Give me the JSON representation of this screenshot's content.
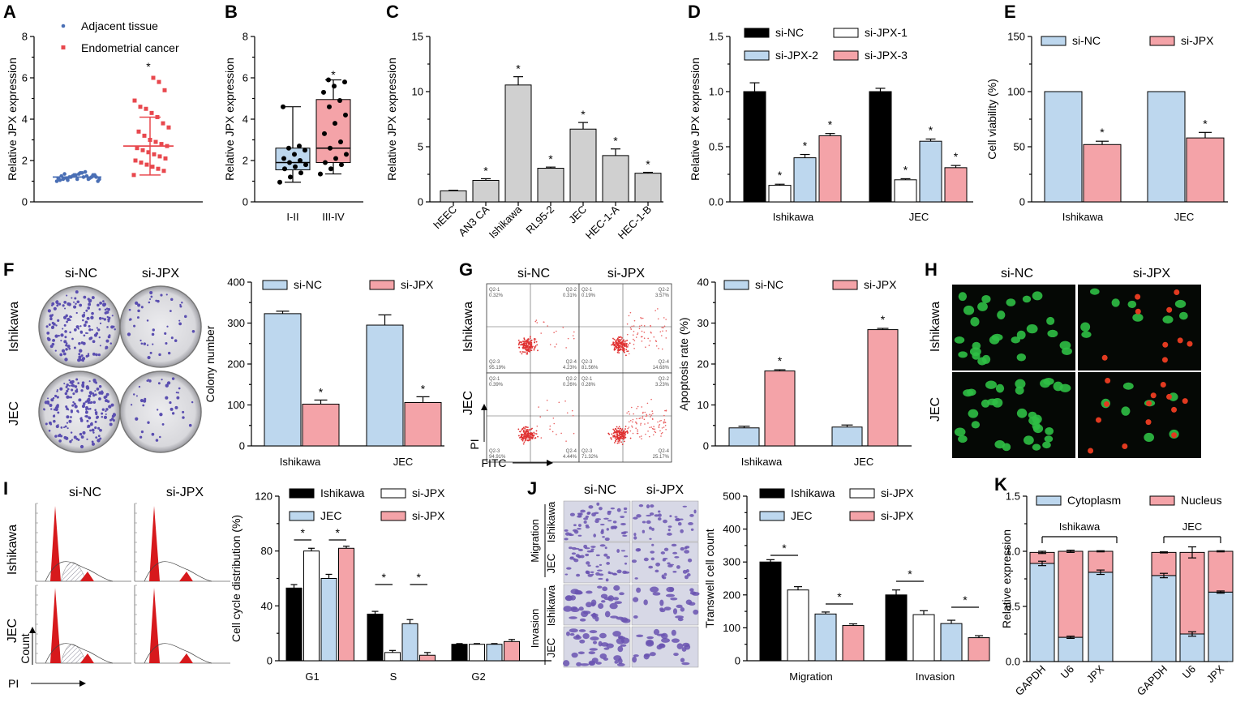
{
  "colors": {
    "blue": "#bdd7ee",
    "red": "#f4a3a8",
    "gray": "#d0d0d0",
    "black": "#000000",
    "white": "#ffffff",
    "dotBlue": "#4a6fb5",
    "dotRed": "#e8484e",
    "cellGreen": "#2fbf45",
    "cellRed": "#e23a20",
    "histRed": "#d7191c",
    "plateLight": "#e3e3e6",
    "plateDot": "#5a4eb0",
    "transLight": "#d7d8e6",
    "transCell": "#6a54b0"
  },
  "panels": {
    "A": {
      "letter": "A",
      "ylabel": "Relative JPX expression",
      "yticks": [
        "0",
        "2",
        "4",
        "6",
        "8"
      ],
      "legend": [
        "Adjacent tissue",
        "Endometrial cancer"
      ],
      "star": "*"
    },
    "B": {
      "letter": "B",
      "ylabel": "Relative JPX expression",
      "yticks": [
        "0",
        "2",
        "4",
        "6",
        "8"
      ],
      "xlabels": [
        "I-II",
        "III-IV"
      ],
      "star": "*"
    },
    "C": {
      "letter": "C",
      "ylabel": "Relative JPX expression",
      "yticks": [
        "0",
        "5",
        "10",
        "15"
      ],
      "xlabels": [
        "hEEC",
        "AN3 CA",
        "Ishikawa",
        "RL95-2",
        "JEC",
        "HEC-1-A",
        "HEC-1-B"
      ],
      "star": "*"
    },
    "D": {
      "letter": "D",
      "ylabel": "Relative JPX expression",
      "yticks": [
        "0.0",
        "0.5",
        "1.0",
        "1.5"
      ],
      "legend": [
        "si-NC",
        "si-JPX-1",
        "si-JPX-2",
        "si-JPX-3"
      ],
      "xlabels": [
        "Ishikawa",
        "JEC"
      ],
      "star": "*"
    },
    "E": {
      "letter": "E",
      "ylabel": "Cell viability (%)",
      "yticks": [
        "0",
        "50",
        "100",
        "150"
      ],
      "legend": [
        "si-NC",
        "si-JPX"
      ],
      "xlabels": [
        "Ishikawa",
        "JEC"
      ],
      "star": "*"
    },
    "F": {
      "letter": "F",
      "cols": [
        "si-NC",
        "si-JPX"
      ],
      "rows": [
        "Ishikawa",
        "JEC"
      ],
      "ylabel": "Colony number",
      "yticks": [
        "0",
        "100",
        "200",
        "300",
        "400"
      ],
      "legend": [
        "si-NC",
        "si-JPX"
      ],
      "xlabels": [
        "Ishikawa",
        "JEC"
      ],
      "star": "*"
    },
    "G": {
      "letter": "G",
      "cols": [
        "si-NC",
        "si-JPX"
      ],
      "rows": [
        "Ishikawa",
        "JEC"
      ],
      "axisY": "PI",
      "axisX": "FITC",
      "quadrants": [
        [
          "Q2-1\n0.32%",
          "Q2-2\n0.31%",
          "Q2-3\n95.19%",
          "Q2-4\n4.23%"
        ],
        [
          "Q2-1\n0.19%",
          "Q2-2\n3.57%",
          "Q2-3\n81.56%",
          "Q2-4\n14.68%"
        ],
        [
          "Q2-1\n0.39%",
          "Q2-2\n0.26%",
          "Q2-3\n94.91%",
          "Q2-4\n4.44%"
        ],
        [
          "Q2-1\n0.28%",
          "Q2-2\n3.23%",
          "Q2-3\n71.32%",
          "Q2-4\n25.17%"
        ]
      ],
      "ylabel": "Apoptosis rate (%)",
      "yticks": [
        "0",
        "10",
        "20",
        "30",
        "40"
      ],
      "legend": [
        "si-NC",
        "si-JPX"
      ],
      "xlabels": [
        "Ishikawa",
        "JEC"
      ],
      "star": "*"
    },
    "H": {
      "letter": "H",
      "cols": [
        "si-NC",
        "si-JPX"
      ],
      "rows": [
        "Ishikawa",
        "JEC"
      ]
    },
    "I": {
      "letter": "I",
      "cols": [
        "si-NC",
        "si-JPX"
      ],
      "rows": [
        "Ishikawa",
        "JEC"
      ],
      "axisY": "Count",
      "axisX": "PI",
      "ylabel": "Cell cycle distribution (%)",
      "yticks": [
        "0",
        "40",
        "80",
        "120"
      ],
      "legend": [
        "Ishikawa",
        "si-JPX",
        "JEC",
        "si-JPX"
      ],
      "xlabels": [
        "G1",
        "S",
        "G2"
      ],
      "star": "*"
    },
    "J": {
      "letter": "J",
      "cols": [
        "si-NC",
        "si-JPX"
      ],
      "rows": [
        "Ishikawa",
        "JEC",
        "Ishikawa",
        "JEC"
      ],
      "groups": [
        "Migration",
        "Invasion"
      ],
      "ylabel": "Transwell cell count",
      "yticks": [
        "0",
        "100",
        "200",
        "300",
        "400",
        "500"
      ],
      "legend": [
        "Ishikawa",
        "si-JPX",
        "JEC",
        "si-JPX"
      ],
      "xlabels": [
        "Migration",
        "Invasion"
      ],
      "star": "*"
    },
    "K": {
      "letter": "K",
      "ylabel": "Relative expression",
      "yticks": [
        "0.0",
        "0.5",
        "1.0",
        "1.5"
      ],
      "legend": [
        "Cytoplasm",
        "Nucleus"
      ],
      "groups": [
        "Ishikawa",
        "JEC"
      ],
      "xlabels": [
        "GAPDH",
        "U6",
        "JPX",
        "GAPDH",
        "U6",
        "JPX"
      ]
    }
  },
  "chart_data": [
    {
      "panel": "A",
      "type": "scatter",
      "ylabel": "Relative JPX expression",
      "ylim": [
        0,
        8
      ],
      "series": [
        {
          "name": "Adjacent tissue",
          "mean": 1.2,
          "sd": 0.12,
          "values": [
            1.0,
            1.05,
            1.1,
            1.15,
            1.2,
            1.25,
            1.3,
            1.35,
            1.4,
            1.45,
            1.1,
            1.2,
            1.3,
            1.0,
            1.15,
            1.25,
            1.35,
            1.05,
            1.2,
            1.3,
            1.1,
            1.4,
            1.2,
            1.25,
            1.15,
            1.3,
            1.2,
            1.1
          ]
        },
        {
          "name": "Endometrial cancer",
          "mean": 2.7,
          "sd": 1.4,
          "values": [
            1.3,
            1.5,
            1.6,
            1.7,
            1.8,
            1.9,
            2.0,
            2.1,
            2.2,
            2.3,
            2.4,
            2.5,
            2.6,
            2.7,
            2.8,
            2.9,
            3.0,
            3.2,
            3.4,
            3.6,
            3.8,
            4.1,
            4.3,
            4.5,
            4.6,
            4.9,
            5.4,
            5.8,
            6.0
          ]
        }
      ]
    },
    {
      "panel": "B",
      "type": "box",
      "ylabel": "Relative JPX expression",
      "ylim": [
        0,
        8
      ],
      "categories": [
        "I-II",
        "III-IV"
      ],
      "series": [
        {
          "name": "I-II",
          "min": 0.95,
          "q1": 1.55,
          "median": 1.9,
          "q3": 2.6,
          "max": 4.6,
          "points": [
            0.95,
            1.2,
            1.4,
            1.6,
            1.7,
            1.8,
            1.9,
            2.0,
            2.1,
            2.3,
            2.5,
            2.6,
            2.7,
            4.6
          ]
        },
        {
          "name": "III-IV",
          "min": 1.35,
          "q1": 1.9,
          "median": 2.6,
          "q3": 4.95,
          "max": 5.9,
          "points": [
            1.35,
            1.6,
            1.8,
            1.9,
            2.1,
            2.3,
            2.6,
            2.9,
            3.3,
            3.8,
            4.2,
            4.6,
            4.9,
            5.3,
            5.6,
            5.8,
            5.9
          ]
        }
      ]
    },
    {
      "panel": "C",
      "type": "bar",
      "ylabel": "Relative JPX expression",
      "ylim": [
        0,
        15
      ],
      "categories": [
        "hEEC",
        "AN3 CA",
        "Ishikawa",
        "RL95-2",
        "JEC",
        "HEC-1-A",
        "HEC-1-B"
      ],
      "values": [
        1.0,
        1.95,
        10.6,
        3.05,
        6.6,
        4.2,
        2.6
      ],
      "errors": [
        0.05,
        0.15,
        0.75,
        0.1,
        0.6,
        0.6,
        0.08
      ],
      "significant": [
        false,
        true,
        true,
        true,
        true,
        true,
        true
      ]
    },
    {
      "panel": "D",
      "type": "bar",
      "ylabel": "Relative JPX expression",
      "ylim": [
        0,
        1.5
      ],
      "categories": [
        "Ishikawa",
        "JEC"
      ],
      "series": [
        {
          "name": "si-NC",
          "values": [
            1.0,
            1.0
          ],
          "errors": [
            0.08,
            0.03
          ]
        },
        {
          "name": "si-JPX-1",
          "values": [
            0.15,
            0.2
          ],
          "errors": [
            0.01,
            0.01
          ]
        },
        {
          "name": "si-JPX-2",
          "values": [
            0.4,
            0.55
          ],
          "errors": [
            0.03,
            0.02
          ]
        },
        {
          "name": "si-JPX-3",
          "values": [
            0.6,
            0.31
          ],
          "errors": [
            0.02,
            0.02
          ]
        }
      ]
    },
    {
      "panel": "E",
      "type": "bar",
      "ylabel": "Cell viability (%)",
      "ylim": [
        0,
        150
      ],
      "categories": [
        "Ishikawa",
        "JEC"
      ],
      "series": [
        {
          "name": "si-NC",
          "values": [
            100,
            100
          ],
          "errors": [
            0,
            0
          ]
        },
        {
          "name": "si-JPX",
          "values": [
            52,
            58
          ],
          "errors": [
            3,
            5
          ]
        }
      ]
    },
    {
      "panel": "F",
      "type": "bar",
      "ylabel": "Colony number",
      "ylim": [
        0,
        400
      ],
      "categories": [
        "Ishikawa",
        "JEC"
      ],
      "series": [
        {
          "name": "si-NC",
          "values": [
            323,
            295
          ],
          "errors": [
            6,
            25
          ]
        },
        {
          "name": "si-JPX",
          "values": [
            102,
            106
          ],
          "errors": [
            10,
            14
          ]
        }
      ]
    },
    {
      "panel": "G",
      "type": "bar",
      "ylabel": "Apoptosis rate (%)",
      "ylim": [
        0,
        40
      ],
      "categories": [
        "Ishikawa",
        "JEC"
      ],
      "series": [
        {
          "name": "si-NC",
          "values": [
            4.4,
            4.6
          ],
          "errors": [
            0.4,
            0.5
          ]
        },
        {
          "name": "si-JPX",
          "values": [
            18.3,
            28.4
          ],
          "errors": [
            0.3,
            0.3
          ]
        }
      ]
    },
    {
      "panel": "I",
      "type": "bar",
      "ylabel": "Cell cycle distribution (%)",
      "ylim": [
        0,
        120
      ],
      "categories": [
        "G1",
        "S",
        "G2"
      ],
      "series": [
        {
          "name": "Ishikawa",
          "values": [
            53,
            34,
            12
          ],
          "errors": [
            2.5,
            2,
            0.5
          ]
        },
        {
          "name": "si-JPX",
          "values": [
            80,
            6,
            12
          ],
          "errors": [
            2,
            1.5,
            0.5
          ]
        },
        {
          "name": "JEC",
          "values": [
            60,
            27,
            12
          ],
          "errors": [
            3,
            3,
            0.5
          ]
        },
        {
          "name": "si-JPX",
          "values": [
            82,
            4,
            14
          ],
          "errors": [
            1.5,
            2,
            1.5
          ]
        }
      ]
    },
    {
      "panel": "J",
      "type": "bar",
      "ylabel": "Transwell cell count",
      "ylim": [
        0,
        500
      ],
      "categories": [
        "Migration",
        "Invasion"
      ],
      "series": [
        {
          "name": "Ishikawa",
          "values": [
            300,
            200
          ],
          "errors": [
            7,
            15
          ]
        },
        {
          "name": "si-JPX",
          "values": [
            215,
            140
          ],
          "errors": [
            10,
            12
          ]
        },
        {
          "name": "JEC",
          "values": [
            142,
            113
          ],
          "errors": [
            6,
            10
          ]
        },
        {
          "name": "si-JPX",
          "values": [
            107,
            70
          ],
          "errors": [
            5,
            6
          ]
        }
      ]
    },
    {
      "panel": "K",
      "type": "stacked-bar",
      "ylabel": "Relative expression",
      "ylim": [
        0,
        1.5
      ],
      "categories": [
        "GAPDH",
        "U6",
        "JPX",
        "GAPDH",
        "U6",
        "JPX"
      ],
      "groups": [
        "Ishikawa",
        "Ishikawa",
        "Ishikawa",
        "JEC",
        "JEC",
        "JEC"
      ],
      "series": [
        {
          "name": "Cytoplasm",
          "values": [
            0.89,
            0.22,
            0.81,
            0.78,
            0.25,
            0.63
          ],
          "errors": [
            0.02,
            0.01,
            0.02,
            0.02,
            0.02,
            0.01
          ]
        },
        {
          "name": "Nucleus",
          "values": [
            0.1,
            0.78,
            0.19,
            0.21,
            0.74,
            0.37
          ],
          "errors": [
            0.01,
            0.01,
            0.0,
            0.0,
            0.05,
            0.0
          ]
        }
      ]
    }
  ]
}
